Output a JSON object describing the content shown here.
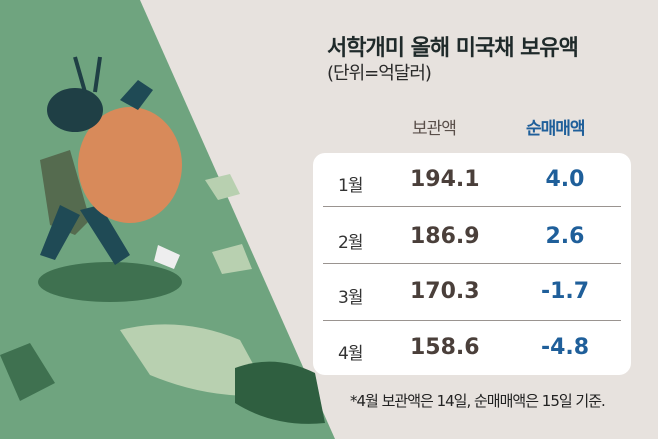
{
  "title": "서학개미 올해 미국채 보유액",
  "unit": "(단위=억달러)",
  "colors": {
    "background": "#e7e2de",
    "green": "#6fa47f",
    "accent_blue": "#1f5f9a",
    "holding": "#4a3f3a"
  },
  "chart_data": {
    "type": "table",
    "title": "서학개미 올해 미국채 보유액",
    "columns": [
      "보관액",
      "순매매액"
    ],
    "rows": [
      {
        "month": "1월",
        "holding": "194.1",
        "net": "4.0"
      },
      {
        "month": "2월",
        "holding": "186.9",
        "net": "2.6"
      },
      {
        "month": "3월",
        "holding": "170.3",
        "net": "-1.7"
      },
      {
        "month": "4월",
        "holding": "158.6",
        "net": "-4.8"
      }
    ]
  },
  "note": "*4월 보관액은 14일, 순매매액은 15일 기준."
}
